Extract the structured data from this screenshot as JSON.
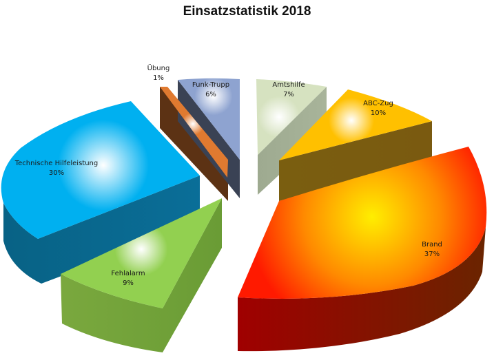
{
  "chart_data": {
    "type": "pie",
    "variant": "3d-exploded",
    "title": "Einsatzstatistik 2018",
    "slices": [
      {
        "label": "Brand",
        "value": 37,
        "value_label": "37%",
        "color": "#ff8a00",
        "edge": "#8a1400",
        "side": "#6a2000"
      },
      {
        "label": "Fehlalarm",
        "value": 9,
        "value_label": "9%",
        "color": "#92d050",
        "edge": "#6a9c35",
        "side": "#7aa83e"
      },
      {
        "label": "Technische Hilfeleistung",
        "value": 30,
        "value_label": "30%",
        "color": "#00b0f0",
        "edge": "#0a6e98",
        "side": "#086285"
      },
      {
        "label": "Übung",
        "value": 1,
        "value_label": "1%",
        "color": "#e07a30",
        "edge": "#5c3214",
        "side": "#5c3214"
      },
      {
        "label": "Funk-Trupp",
        "value": 6,
        "value_label": "6%",
        "color": "#8ea3d0",
        "edge": "#3a4254",
        "side": "#3a4254"
      },
      {
        "label": "Amtshilfe",
        "value": 7,
        "value_label": "7%",
        "color": "#d6e2c0",
        "edge": "#a8b49a",
        "side": "#9eaa90"
      },
      {
        "label": "ABC-Zug",
        "value": 10,
        "value_label": "10%",
        "color": "#ffc000",
        "edge": "#7a5a10",
        "side": "#7a5e10"
      }
    ]
  }
}
